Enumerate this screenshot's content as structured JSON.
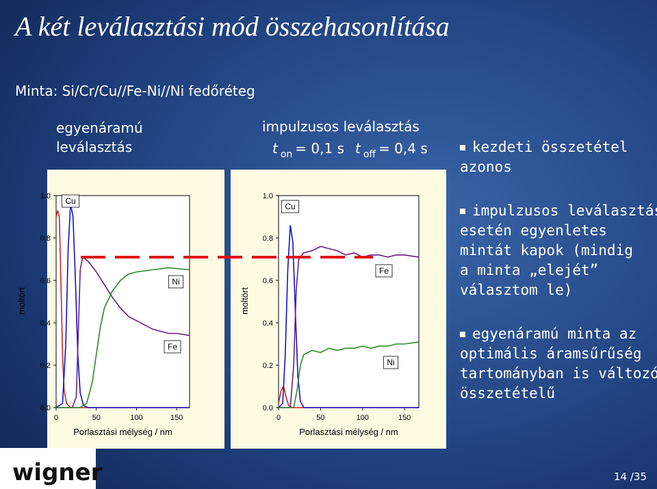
{
  "title": "A két leválasztási mód összehasonlítása",
  "sample": "Minta: Si/Cr/Cu//Fe-Ni//Ni fedőréteg",
  "left_header": [
    "egyenáramú",
    "leválasztás"
  ],
  "right_header": "impulzusos leválasztás",
  "pulse_params": [
    {
      "symbol": "t",
      "sub": "on",
      "value": "= 0,1 s"
    },
    {
      "symbol": "t",
      "sub": "off",
      "value": "= 0,4 s"
    }
  ],
  "bullets": [
    [
      "kezdeti összetétel",
      "azonos"
    ],
    [
      "impulzusos leválasztás",
      "esetén egyenletes",
      "mintát kapok (mindig",
      "a minta „elejét”",
      "választom le)"
    ],
    [
      "egyenáramú minta az",
      "optimális áramsűrűség",
      "tartományban is változó",
      "összetételű"
    ]
  ],
  "logo": "wigner",
  "page_number": "14 /35",
  "chart_data": [
    {
      "type": "line",
      "xlabel": "Porlasztási mélység / nm",
      "ylabel": "moltört",
      "xlim": [
        0,
        166
      ],
      "ylim": [
        0,
        1
      ],
      "xticks": [
        0,
        50,
        100,
        150
      ],
      "yticks": [
        {
          "value": 0,
          "label": "0.0"
        },
        0.2,
        0.4,
        0.6,
        0.8,
        {
          "value": 1,
          "label": "1.0"
        }
      ],
      "series": [
        {
          "color": "#d42020",
          "x": [
            0,
            2,
            4,
            6,
            8,
            10,
            13,
            18,
            166
          ],
          "values": [
            0.9,
            0.93,
            0.9,
            0.6,
            0.25,
            0.08,
            0.02,
            0,
            0
          ]
        },
        {
          "name": "Cu",
          "color": "#1010d0",
          "x": [
            0,
            8,
            12,
            15,
            18,
            21,
            24,
            27,
            30,
            34,
            40,
            166
          ],
          "values": [
            0,
            0.02,
            0.3,
            0.75,
            0.96,
            0.9,
            0.6,
            0.25,
            0.07,
            0.01,
            0,
            0
          ]
        },
        {
          "name": "Fe",
          "color": "#6a1a8a",
          "x": [
            0,
            20,
            25,
            28,
            30,
            33,
            40,
            50,
            60,
            70,
            80,
            90,
            100,
            110,
            120,
            130,
            140,
            150,
            166
          ],
          "values": [
            0,
            0,
            0.05,
            0.4,
            0.65,
            0.71,
            0.69,
            0.64,
            0.58,
            0.52,
            0.47,
            0.43,
            0.41,
            0.39,
            0.37,
            0.36,
            0.35,
            0.35,
            0.34
          ]
        },
        {
          "name": "Ni",
          "color": "#2a8a2a",
          "x": [
            0,
            30,
            38,
            45,
            50,
            55,
            60,
            70,
            80,
            90,
            100,
            120,
            140,
            166
          ],
          "values": [
            0,
            0,
            0.02,
            0.12,
            0.25,
            0.38,
            0.47,
            0.55,
            0.6,
            0.63,
            0.64,
            0.65,
            0.66,
            0.65
          ]
        }
      ]
    },
    {
      "type": "line",
      "xlabel": "Porlasztási mélység / nm",
      "ylabel": "moltört",
      "xlim": [
        0,
        167
      ],
      "ylim": [
        0,
        1
      ],
      "xticks": [
        0,
        50,
        100,
        150
      ],
      "yticks": [
        {
          "value": 0,
          "label": "0.0"
        },
        0.2,
        0.4,
        0.6,
        0.8,
        {
          "value": 1,
          "label": "1.0"
        }
      ],
      "series": [
        {
          "color": "#d42020",
          "x": [
            0,
            3,
            6,
            9,
            12,
            16,
            167
          ],
          "values": [
            0.02,
            0.08,
            0.1,
            0.05,
            0.01,
            0,
            0
          ]
        },
        {
          "name": "Cu",
          "color": "#1010d0",
          "x": [
            0,
            5,
            8,
            11,
            14,
            17,
            20,
            23,
            26,
            30,
            167
          ],
          "values": [
            0,
            0.02,
            0.25,
            0.65,
            0.86,
            0.78,
            0.45,
            0.15,
            0.03,
            0,
            0
          ]
        },
        {
          "name": "Fe",
          "color": "#6a1a8a",
          "x": [
            0,
            14,
            18,
            21,
            24,
            30,
            40,
            50,
            60,
            70,
            80,
            90,
            100,
            110,
            120,
            130,
            140,
            150,
            167
          ],
          "values": [
            0,
            0,
            0.2,
            0.55,
            0.7,
            0.73,
            0.74,
            0.76,
            0.75,
            0.74,
            0.72,
            0.73,
            0.71,
            0.72,
            0.72,
            0.71,
            0.72,
            0.72,
            0.71
          ]
        },
        {
          "name": "Ni",
          "color": "#2a8a2a",
          "x": [
            0,
            18,
            22,
            26,
            30,
            40,
            50,
            60,
            70,
            80,
            90,
            100,
            110,
            120,
            130,
            140,
            150,
            167
          ],
          "values": [
            0,
            0,
            0.08,
            0.2,
            0.25,
            0.27,
            0.26,
            0.28,
            0.27,
            0.28,
            0.28,
            0.29,
            0.28,
            0.29,
            0.29,
            0.3,
            0.3,
            0.31
          ]
        }
      ]
    }
  ]
}
